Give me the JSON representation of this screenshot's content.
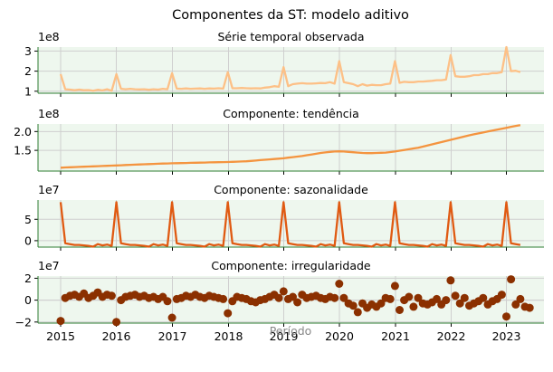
{
  "title": "Componentes da ST: modelo aditivo",
  "xlabel": "Período",
  "x_ticks": [
    "2015",
    "2016",
    "2017",
    "2018",
    "2019",
    "2020",
    "2021",
    "2022",
    "2023"
  ],
  "colors": {
    "panel_bg": "#eef7ee",
    "axis": "#2e7d32",
    "grid": "#cfcfcf",
    "observed": "#fdc086",
    "trend": "#f4943f",
    "seasonal": "#e05a12",
    "irregular": "#8b3000",
    "xlabel": "#888888"
  },
  "chart_data": [
    {
      "type": "line",
      "title": "Série temporal observada",
      "scale_label": "1e8",
      "yticks": [
        "1",
        "2",
        "3"
      ],
      "ylim": [
        0.9,
        3.2
      ],
      "grid": true,
      "x_start": "2015-01",
      "frequency": "monthly",
      "values": [
        1.85,
        1.1,
        1.08,
        1.05,
        1.08,
        1.05,
        1.06,
        1.02,
        1.07,
        1.04,
        1.1,
        1.02,
        1.85,
        1.12,
        1.1,
        1.12,
        1.1,
        1.09,
        1.1,
        1.07,
        1.1,
        1.08,
        1.12,
        1.1,
        1.9,
        1.13,
        1.12,
        1.14,
        1.12,
        1.13,
        1.14,
        1.12,
        1.14,
        1.13,
        1.15,
        1.13,
        1.95,
        1.15,
        1.15,
        1.16,
        1.15,
        1.14,
        1.15,
        1.14,
        1.18,
        1.2,
        1.25,
        1.22,
        2.2,
        1.25,
        1.35,
        1.38,
        1.4,
        1.38,
        1.38,
        1.39,
        1.41,
        1.4,
        1.45,
        1.38,
        2.5,
        1.45,
        1.4,
        1.35,
        1.25,
        1.35,
        1.28,
        1.32,
        1.3,
        1.3,
        1.35,
        1.38,
        2.5,
        1.42,
        1.47,
        1.45,
        1.45,
        1.48,
        1.48,
        1.5,
        1.52,
        1.55,
        1.55,
        1.58,
        2.8,
        1.75,
        1.72,
        1.72,
        1.75,
        1.8,
        1.8,
        1.85,
        1.85,
        1.9,
        1.9,
        1.95,
        3.2,
        2.0,
        2.02,
        1.95
      ]
    },
    {
      "type": "line",
      "title": "Componente: tendência",
      "scale_label": "1e8",
      "yticks": [
        "1.5",
        "2.0"
      ],
      "ylim": [
        0.95,
        2.2
      ],
      "grid": true,
      "x_start": "2015-01",
      "frequency": "monthly",
      "values": [
        1.04,
        1.045,
        1.05,
        1.055,
        1.06,
        1.065,
        1.07,
        1.075,
        1.08,
        1.085,
        1.09,
        1.095,
        1.1,
        1.105,
        1.11,
        1.115,
        1.12,
        1.125,
        1.13,
        1.135,
        1.14,
        1.145,
        1.15,
        1.153,
        1.156,
        1.159,
        1.162,
        1.165,
        1.168,
        1.171,
        1.174,
        1.177,
        1.18,
        1.183,
        1.186,
        1.189,
        1.19,
        1.195,
        1.2,
        1.205,
        1.21,
        1.22,
        1.23,
        1.24,
        1.25,
        1.26,
        1.27,
        1.28,
        1.29,
        1.305,
        1.32,
        1.335,
        1.35,
        1.37,
        1.39,
        1.41,
        1.43,
        1.445,
        1.46,
        1.47,
        1.475,
        1.47,
        1.46,
        1.45,
        1.44,
        1.43,
        1.425,
        1.425,
        1.43,
        1.435,
        1.44,
        1.455,
        1.47,
        1.49,
        1.51,
        1.53,
        1.55,
        1.57,
        1.6,
        1.63,
        1.66,
        1.69,
        1.72,
        1.75,
        1.78,
        1.81,
        1.84,
        1.87,
        1.9,
        1.925,
        1.95,
        1.975,
        2.0,
        2.025,
        2.05,
        2.075,
        2.1,
        2.125,
        2.15,
        2.17
      ]
    },
    {
      "type": "line",
      "title": "Componente: sazonalidade",
      "scale_label": "1e7",
      "yticks": [
        "0",
        "5"
      ],
      "ylim": [
        -1.5,
        9.5
      ],
      "grid": true,
      "x_start": "2015-01",
      "frequency": "monthly",
      "pattern": [
        9.0,
        -0.6,
        -0.8,
        -1.0,
        -1.0,
        -1.1,
        -1.2,
        -1.4,
        -0.8,
        -1.1,
        -0.9,
        -1.2
      ],
      "n_points": 100
    },
    {
      "type": "scatter",
      "title": "Componente: irregularidade",
      "scale_label": "1e7",
      "yticks": [
        "−2",
        "0",
        "2"
      ],
      "ylim": [
        -2.1,
        2.2
      ],
      "grid": true,
      "baseline": 0,
      "x_start": "2015-01",
      "frequency": "monthly",
      "values": [
        -1.9,
        0.2,
        0.4,
        0.5,
        0.3,
        0.6,
        0.2,
        0.4,
        0.7,
        0.3,
        0.5,
        0.4,
        -2.0,
        0.0,
        0.3,
        0.4,
        0.5,
        0.3,
        0.4,
        0.2,
        0.3,
        0.1,
        0.3,
        -0.1,
        -1.6,
        0.1,
        0.2,
        0.4,
        0.3,
        0.5,
        0.3,
        0.2,
        0.4,
        0.3,
        0.2,
        0.1,
        -1.2,
        -0.1,
        0.3,
        0.2,
        0.1,
        -0.1,
        -0.2,
        0.0,
        0.1,
        0.3,
        0.5,
        0.2,
        0.8,
        0.1,
        0.3,
        -0.2,
        0.5,
        0.2,
        0.3,
        0.4,
        0.2,
        0.1,
        0.3,
        0.2,
        1.5,
        0.2,
        -0.3,
        -0.5,
        -1.1,
        -0.3,
        -0.7,
        -0.4,
        -0.6,
        -0.3,
        0.2,
        0.1,
        1.3,
        -0.9,
        0.0,
        0.3,
        -0.6,
        0.2,
        -0.3,
        -0.4,
        -0.2,
        0.1,
        -0.4,
        0.0,
        1.8,
        0.4,
        -0.3,
        0.2,
        -0.5,
        -0.3,
        -0.1,
        0.2,
        -0.4,
        -0.1,
        0.1,
        0.5,
        -1.5,
        1.9,
        -0.4,
        0.1,
        -0.6,
        -0.7
      ]
    }
  ]
}
